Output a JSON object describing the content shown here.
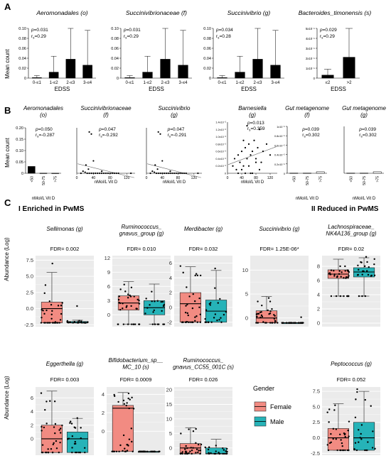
{
  "panel_labels": {
    "a": "A",
    "b": "B",
    "c": "C"
  },
  "axes_text": {
    "mean_count": "Mean count",
    "edss": "EDSS",
    "vitd": "nMol/L Vit D",
    "abundance": "Abundance (Log)"
  },
  "section_c": {
    "enriched": "I  Enriched in PwMS",
    "reduced": "II  Reduced in PwMS"
  },
  "legend": {
    "title": "Gender",
    "items": [
      {
        "label": "Female",
        "color": "#f28b82"
      },
      {
        "label": "Male",
        "color": "#26b3b8"
      }
    ]
  },
  "colors": {
    "female": "#f28b82",
    "male": "#26b3b8",
    "panel_bg": "#ebebeb"
  },
  "chart_data": [
    {
      "type": "bar",
      "panel": "A",
      "title": "Aeromonadales (o)",
      "stats": {
        "p": "p=0.031",
        "r": "rs=0.29"
      },
      "categories": [
        "0-≤1",
        "1-≤2",
        "2-≤3",
        "3-≤4"
      ],
      "values": [
        0.001,
        0.012,
        0.038,
        0.026
      ],
      "err": [
        0.004,
        0.032,
        0.082,
        0.07
      ],
      "yticks": [
        "0",
        "0.02",
        "0.04",
        "0.06",
        "0.08",
        "0.10"
      ],
      "ylim": [
        0,
        0.1
      ],
      "xlabel": "EDSS",
      "ylabel": "Mean count"
    },
    {
      "type": "bar",
      "panel": "A",
      "title": "Succinivibrionaceae (f)",
      "stats": {
        "p": "p=0.031",
        "r": "rs=0.29"
      },
      "categories": [
        "0-≤1",
        "1-≤2",
        "2-≤3",
        "3-≤4"
      ],
      "values": [
        0.001,
        0.012,
        0.038,
        0.026
      ],
      "err": [
        0.004,
        0.032,
        0.082,
        0.07
      ],
      "yticks": [
        "0",
        "0.02",
        "0.04",
        "0.06",
        "0.08",
        "0.10"
      ],
      "ylim": [
        0,
        0.1
      ],
      "xlabel": "EDSS",
      "ylabel": ""
    },
    {
      "type": "bar",
      "panel": "A",
      "title": "Succinivibrio (g)",
      "stats": {
        "p": "p=0.034",
        "r": "rs=0.28"
      },
      "categories": [
        "0-≤1",
        "1-≤2",
        "2-≤3",
        "3-≤4"
      ],
      "values": [
        0.001,
        0.012,
        0.038,
        0.026
      ],
      "err": [
        0.004,
        0.032,
        0.082,
        0.07
      ],
      "yticks": [
        "0",
        "0.02",
        "0.04",
        "0.06",
        "0.08",
        "0.10"
      ],
      "ylim": [
        0,
        0.1
      ],
      "xlabel": "EDSS",
      "ylabel": ""
    },
    {
      "type": "bar",
      "panel": "A",
      "title": "Bacteroides_timonensis (s)",
      "stats": {
        "p": "p=0.029",
        "r": "rs=0.29"
      },
      "categories": [
        "≤2",
        ">2"
      ],
      "values": [
        3e-06,
        2.1e-05
      ],
      "err": [
        6e-06,
        4.8e-05
      ],
      "yticks": [
        "0",
        "1x10⁻⁵",
        "2x10⁻⁵",
        "3x10⁻⁵",
        "4x10⁻⁵",
        "5x10⁻⁵"
      ],
      "ylim": [
        0,
        5e-05
      ],
      "xlabel": "EDSS",
      "ylabel": ""
    },
    {
      "type": "bar",
      "panel": "B",
      "title": "Aeromonadales (o)",
      "stats": {
        "p": "p=0.050",
        "r": "rs=-0.287"
      },
      "categories": [
        "<50",
        "50-75",
        ">75"
      ],
      "values": [
        0.03,
        0.0005,
        0.0003
      ],
      "err": [
        0,
        0,
        0
      ],
      "yticks": [
        "0",
        "0.05",
        "0.10",
        "0.15",
        "0.20"
      ],
      "ylim": [
        0,
        0.2
      ],
      "xlabel": "nMol/L Vit D",
      "ylabel": "Mean count"
    },
    {
      "type": "scatter",
      "panel": "B",
      "title": "Succinivibrionaceae (f)",
      "stats": {
        "p": "p=0.047",
        "r": "rs=-0.292"
      },
      "xticks": [
        "0",
        "40",
        "80",
        "120"
      ],
      "xlim": [
        0,
        140
      ],
      "yticks": [],
      "ylim": [
        0,
        0.22
      ],
      "x": [
        10,
        15,
        20,
        25,
        28,
        30,
        35,
        40,
        45,
        50,
        55,
        60,
        65,
        70,
        75,
        80,
        85,
        90,
        95,
        100,
        30,
        35,
        22,
        40,
        60,
        130
      ],
      "y": [
        0.0,
        0.01,
        0.005,
        0.0,
        0.02,
        0.0,
        0.0,
        0.0,
        0.0,
        0.0,
        0.0,
        0.0,
        0.0,
        0.0,
        0.0,
        0.0,
        0.0,
        0.0,
        0.0,
        0.0,
        0.2,
        0.19,
        0.04,
        0.06,
        0.01,
        0.0
      ],
      "xlabel": "nMol/L Vit D",
      "ylabel": ""
    },
    {
      "type": "scatter",
      "panel": "B",
      "title": "Succinivibrio (g)",
      "stats": {
        "p": "p=0.047",
        "r": "rs=-0.291"
      },
      "xticks": [
        "0",
        "40",
        "80",
        "120"
      ],
      "xlim": [
        0,
        140
      ],
      "yticks": [],
      "ylim": [
        0,
        0.22
      ],
      "x": [
        10,
        15,
        20,
        25,
        28,
        30,
        35,
        40,
        45,
        50,
        55,
        60,
        65,
        70,
        75,
        80,
        85,
        90,
        95,
        100,
        30,
        35,
        22,
        40,
        60,
        130
      ],
      "y": [
        0.0,
        0.01,
        0.005,
        0.0,
        0.02,
        0.0,
        0.0,
        0.0,
        0.0,
        0.0,
        0.0,
        0.0,
        0.0,
        0.0,
        0.0,
        0.0,
        0.0,
        0.0,
        0.0,
        0.0,
        0.2,
        0.19,
        0.04,
        0.06,
        0.01,
        0.0
      ],
      "xlabel": "nMol/L Vit D",
      "ylabel": ""
    },
    {
      "type": "scatter",
      "panel": "B",
      "title": "Barnesiella (g)",
      "stats": {
        "p": "p=0.013",
        "r": "rs=0.359"
      },
      "xticks": [
        "0",
        "40",
        "80",
        "120"
      ],
      "xlim": [
        0,
        140
      ],
      "yticks": [
        "0",
        "0.2x10⁻²",
        "0.4x10⁻²",
        "0.6x10⁻²",
        "0.8x10⁻²",
        "1.0x10⁻²",
        "1.2x10⁻²",
        "1.4x10⁻²"
      ],
      "ylim": [
        0,
        0.014
      ],
      "x": [
        15,
        20,
        25,
        30,
        35,
        40,
        45,
        50,
        55,
        60,
        65,
        70,
        75,
        80,
        85,
        90,
        95,
        100,
        110,
        120,
        30,
        40,
        50,
        60,
        70,
        80,
        90,
        55,
        45,
        65
      ],
      "y": [
        0.002,
        0.004,
        0.001,
        0.005,
        0.003,
        0.006,
        0.002,
        0.007,
        0.004,
        0.008,
        0.005,
        0.006,
        0.009,
        0.004,
        0.007,
        0.012,
        0.003,
        0.006,
        0.008,
        0.005,
        0.0,
        0.001,
        0.0,
        0.002,
        0.0,
        0.003,
        0.001,
        0.013,
        0.009,
        0.0
      ],
      "xlabel": "nMol/L Vit D",
      "ylabel": ""
    },
    {
      "type": "bar",
      "panel": "B",
      "title": "Gut metagenome (f)",
      "stats": {
        "p": "p=0.039",
        "r": "rs=0.302"
      },
      "categories": [
        "<50",
        "50-75",
        ">75"
      ],
      "values": [
        5e-08,
        5e-08,
        3.2e-07
      ],
      "err": [
        0,
        0,
        0
      ],
      "yticks": [
        "0",
        "0.2x10⁻⁵",
        "0.4x10⁻⁵",
        "0.6x10⁻⁵",
        "0.8x10⁻⁵",
        "1x10⁻⁵"
      ],
      "ylim": [
        0,
        1e-05
      ],
      "xlabel": "nMol/L Vit D",
      "ylabel": ""
    },
    {
      "type": "bar",
      "panel": "B",
      "title": "Gut metagenome (g)",
      "stats": {
        "p": "p=0.039",
        "r": "rs=0.302"
      },
      "categories": [
        "<50",
        "50-75",
        ">75"
      ],
      "values": [
        5e-08,
        5e-08,
        3.2e-07
      ],
      "err": [
        0,
        0,
        0
      ],
      "yticks": [],
      "ylim": [
        0,
        1e-05
      ],
      "xlabel": "nMol/L Vit D",
      "ylabel": ""
    },
    {
      "type": "box",
      "panel": "C",
      "title": "Sellimonas (g)",
      "fdr": "FDR= 0.002",
      "yticks": [
        "-2.5",
        "0.0",
        "2.5",
        "5.0",
        "7.5"
      ],
      "ylim": [
        -2.8,
        8.2
      ],
      "female": {
        "min": -2.2,
        "q1": -2.2,
        "median": 0.0,
        "q3": 1.0,
        "max": 5.6
      },
      "male": {
        "min": -2.2,
        "q1": -2.2,
        "median": -2.2,
        "q3": -2.0,
        "max": -1.8
      }
    },
    {
      "type": "box",
      "panel": "C",
      "title": "Ruminococcus_ gnavus_group (g)",
      "fdr": "FDR= 0.010",
      "yticks": [
        "0",
        "3",
        "6",
        "9",
        "12"
      ],
      "ylim": [
        -2.5,
        12.5
      ],
      "female": {
        "min": -2.0,
        "q1": 1.0,
        "median": 2.5,
        "q3": 4.0,
        "max": 7.0
      },
      "male": {
        "min": -2.0,
        "q1": 0.0,
        "median": 1.5,
        "q3": 3.0,
        "max": 6.5
      }
    },
    {
      "type": "box",
      "panel": "C",
      "title": "Merdibacter (g)",
      "fdr": "FDR= 0.032",
      "yticks": [
        "-2",
        "0",
        "2",
        "4",
        "6"
      ],
      "ylim": [
        -2.6,
        7.0
      ],
      "female": {
        "min": -2.0,
        "q1": -2.0,
        "median": 0.5,
        "q3": 2.0,
        "max": 5.5
      },
      "male": {
        "min": -2.0,
        "q1": -2.0,
        "median": -0.5,
        "q3": 1.0,
        "max": 5.0
      }
    },
    {
      "type": "box",
      "panel": "C",
      "title": "Succinivibrio (g)",
      "fdr": "FDR= 1.25E-06*",
      "yticks": [
        "0",
        "5",
        "10"
      ],
      "ylim": [
        -1.8,
        13.0
      ],
      "female": {
        "min": -1.0,
        "q1": -1.0,
        "median": 0.0,
        "q3": 1.5,
        "max": 4.5
      },
      "male": {
        "min": -1.0,
        "q1": -1.0,
        "median": -1.0,
        "q3": -1.0,
        "max": -1.0
      }
    },
    {
      "type": "box",
      "panel": "C",
      "title": "Lachnospiraceae_ NK4A136_group (g)",
      "fdr": "FDR= 0.02",
      "yticks": [
        "0",
        "2",
        "4",
        "6",
        "8"
      ],
      "ylim": [
        -0.5,
        9.5
      ],
      "female": {
        "min": 3.8,
        "q1": 6.3,
        "median": 6.9,
        "q3": 7.5,
        "max": 9.0
      },
      "male": {
        "min": 3.8,
        "q1": 6.5,
        "median": 7.2,
        "q3": 7.8,
        "max": 9.2
      }
    },
    {
      "type": "box",
      "panel": "C",
      "title": "Eggerthella (g)",
      "fdr": "FDR= 0.003",
      "yticks": [
        "0",
        "2",
        "4",
        "6"
      ],
      "ylim": [
        -2.4,
        7.6
      ],
      "female": {
        "min": -2.0,
        "q1": -2.0,
        "median": 0.0,
        "q3": 2.0,
        "max": 7.0
      },
      "male": {
        "min": -2.0,
        "q1": -2.0,
        "median": 0.0,
        "q3": 1.0,
        "max": 3.0
      }
    },
    {
      "type": "box",
      "panel": "C",
      "title": "Bifidobacterium_sp__ MC_10 (s)",
      "fdr": "FDR= 0.0009",
      "yticks": [
        "0",
        "2",
        "4"
      ],
      "ylim": [
        -2.6,
        4.8
      ],
      "female": {
        "min": -2.2,
        "q1": -2.2,
        "median": 2.5,
        "q3": 2.8,
        "max": 4.2
      },
      "male": {
        "min": -2.2,
        "q1": -2.2,
        "median": -2.2,
        "q3": -2.2,
        "max": -2.2
      }
    },
    {
      "type": "box",
      "panel": "C",
      "title": "Ruminococcus_ gnavus_CC55_001C (s)",
      "fdr": "FDR= 0.026",
      "yticks": [
        "0",
        "5",
        "10",
        "15",
        "20"
      ],
      "ylim": [
        -2.5,
        21.0
      ],
      "female": {
        "min": -2.0,
        "q1": -2.0,
        "median": 0.0,
        "q3": 1.5,
        "max": 7.0
      },
      "male": {
        "min": -2.0,
        "q1": -2.0,
        "median": -2.0,
        "q3": 0.0,
        "max": 3.0
      }
    },
    {
      "type": "box",
      "panel": "C",
      "title": "Peptococcus (g)",
      "fdr": "FDR= 0.052",
      "yticks": [
        "-2.5",
        "0.0",
        "2.5",
        "5.0",
        "7.5"
      ],
      "ylim": [
        -2.8,
        8.2
      ],
      "female": {
        "min": -2.0,
        "q1": -2.0,
        "median": 0.0,
        "q3": 1.5,
        "max": 5.5
      },
      "male": {
        "min": -2.0,
        "q1": -2.0,
        "median": 0.0,
        "q3": 2.5,
        "max": 7.5
      }
    }
  ]
}
